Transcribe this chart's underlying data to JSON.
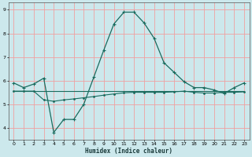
{
  "xlabel": "Humidex (Indice chaleur)",
  "bg_color": "#cce8ec",
  "grid_color": "#f0a0a0",
  "line_color": "#1a6b5e",
  "xlim": [
    -0.5,
    23.5
  ],
  "ylim": [
    3.5,
    9.3
  ],
  "xticks": [
    0,
    1,
    2,
    3,
    4,
    5,
    6,
    7,
    8,
    9,
    10,
    11,
    12,
    13,
    14,
    15,
    16,
    17,
    18,
    19,
    20,
    21,
    22,
    23
  ],
  "yticks": [
    4,
    5,
    6,
    7,
    8,
    9
  ],
  "line1_x": [
    0,
    1,
    2,
    3,
    4,
    5,
    6,
    7,
    8,
    9,
    10,
    11,
    12,
    13,
    14,
    15,
    16,
    17,
    18,
    19,
    20,
    21,
    22,
    23
  ],
  "line1_y": [
    5.9,
    5.7,
    5.85,
    6.1,
    3.8,
    4.35,
    4.35,
    5.0,
    6.15,
    7.3,
    8.4,
    8.9,
    8.9,
    8.45,
    7.8,
    6.75,
    6.35,
    5.95,
    5.7,
    5.7,
    5.6,
    5.45,
    5.7,
    5.9
  ],
  "line2_x": [
    0,
    1,
    2,
    3,
    4,
    5,
    6,
    7,
    8,
    9,
    10,
    11,
    12,
    13,
    14,
    15,
    16,
    17,
    18,
    19,
    20,
    21,
    22,
    23
  ],
  "line2_y": [
    5.55,
    5.55,
    5.55,
    5.18,
    5.12,
    5.18,
    5.22,
    5.27,
    5.32,
    5.38,
    5.43,
    5.48,
    5.5,
    5.5,
    5.5,
    5.5,
    5.52,
    5.55,
    5.5,
    5.47,
    5.47,
    5.5,
    5.5,
    5.52
  ],
  "line3_x": [
    0,
    23
  ],
  "line3_y": [
    5.55,
    5.55
  ]
}
